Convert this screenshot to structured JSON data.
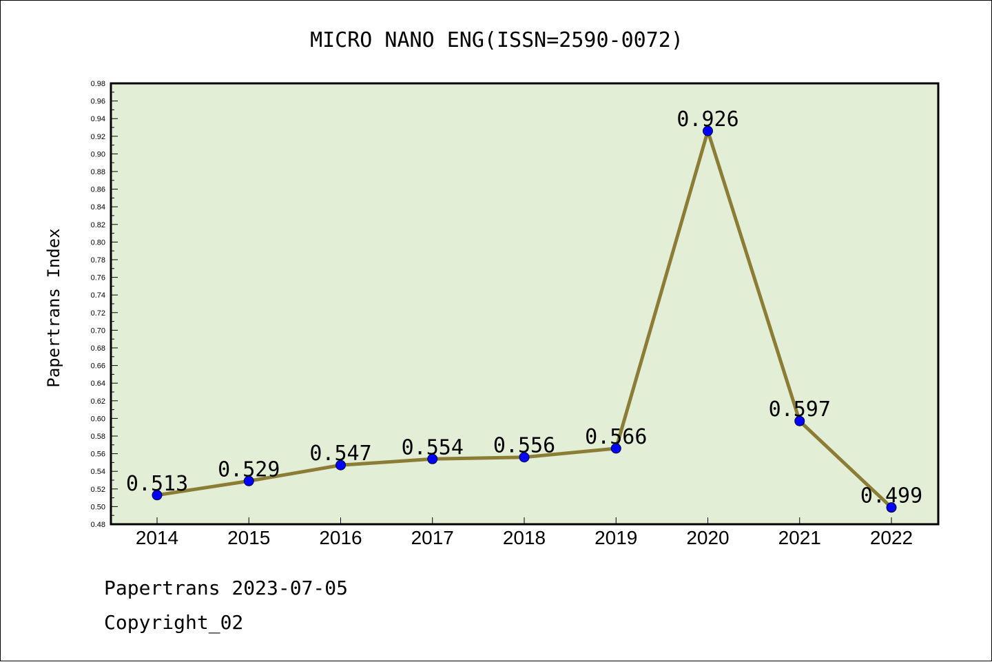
{
  "chart_data": {
    "type": "line",
    "title": "MICRO NANO ENG(ISSN=2590-0072)",
    "xlabel": "",
    "ylabel": "Papertrans Index",
    "categories": [
      "2014",
      "2015",
      "2016",
      "2017",
      "2018",
      "2019",
      "2020",
      "2021",
      "2022"
    ],
    "values": [
      0.513,
      0.529,
      0.547,
      0.554,
      0.556,
      0.566,
      0.926,
      0.597,
      0.499
    ],
    "data_labels": [
      "0.513",
      "0.529",
      "0.547",
      "0.554",
      "0.556",
      "0.566",
      "0.926",
      "0.597",
      "0.499"
    ],
    "ylim": [
      0.48,
      0.98
    ],
    "yticks": [
      "0.48",
      "0.50",
      "0.52",
      "0.54",
      "0.56",
      "0.58",
      "0.60",
      "0.62",
      "0.64",
      "0.66",
      "0.68",
      "0.70",
      "0.72",
      "0.74",
      "0.76",
      "0.78",
      "0.80",
      "0.82",
      "0.84",
      "0.86",
      "0.88",
      "0.90",
      "0.92",
      "0.94",
      "0.96",
      "0.98"
    ],
    "grid": false,
    "legend": "none",
    "colors": {
      "plot_background": "#e2efd6",
      "line": "#8b7d35",
      "marker": "#0000ff",
      "axis": "#000000"
    }
  },
  "footer": {
    "line1": "Papertrans 2023-07-05",
    "line2": "Copyright_02"
  }
}
